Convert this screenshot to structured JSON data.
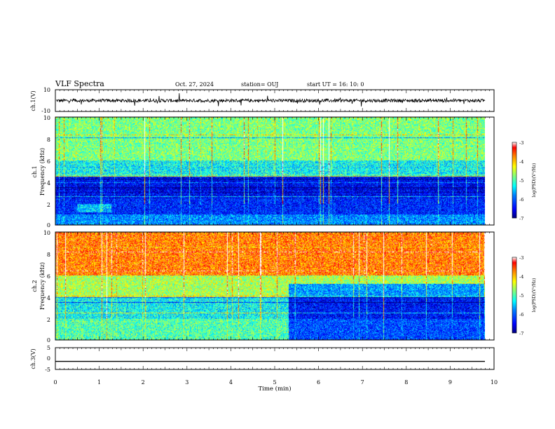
{
  "header": {
    "title": "VLF Spectra",
    "date": "Oct. 27, 2024",
    "station": "station= OUJ",
    "start": "start  UT =   16: 10: 0"
  },
  "colors": {
    "colormap": [
      "#00007f",
      "#0000ff",
      "#007fff",
      "#00ffff",
      "#7fff7f",
      "#ffff00",
      "#ff7f00",
      "#ff0000",
      "#ffffff"
    ]
  },
  "chart_data": [
    {
      "type": "line",
      "name": "ch1-waveform",
      "ylabel": "ch.1(V)",
      "ylim": [
        -10,
        10
      ],
      "yticks": [
        "10",
        "-10"
      ],
      "xlim": [
        0,
        10
      ],
      "baseline": 0,
      "noise_amplitude": 1.5
    },
    {
      "type": "heatmap",
      "name": "ch1-spectrogram",
      "ylabel": "ch.1\nFrequency  (kHz)",
      "ylim": [
        0,
        10
      ],
      "yticks": [
        "0",
        "2",
        "4",
        "6",
        "8",
        "10"
      ],
      "xlim": [
        0,
        9.8
      ],
      "colorbar": {
        "label": "log(PSD)(V²/Hz)",
        "range": [
          -7,
          -3
        ],
        "ticks": [
          "-3",
          "-4",
          "-5",
          "-6",
          "-7"
        ]
      },
      "bands_khz": [
        [
          0,
          1,
          -5.8
        ],
        [
          1,
          2.5,
          -6.3
        ],
        [
          2.5,
          4.5,
          -6.5
        ],
        [
          4.5,
          6,
          -5.3
        ],
        [
          6,
          10,
          -4.8
        ]
      ]
    },
    {
      "type": "heatmap",
      "name": "ch2-spectrogram",
      "ylabel": "ch.2\nFrequency  (kHz)",
      "ylim": [
        0,
        10
      ],
      "yticks": [
        "0",
        "2",
        "4",
        "6",
        "8",
        "10"
      ],
      "xlim": [
        0,
        9.8
      ],
      "colorbar": {
        "label": "log(PSD)(V²/Hz)",
        "range": [
          -7,
          -3
        ],
        "ticks": [
          "-3",
          "-4",
          "-5",
          "-6",
          "-7"
        ]
      },
      "bands_khz": [
        [
          0,
          2,
          -5.0
        ],
        [
          2,
          4,
          -5.3
        ],
        [
          4,
          6,
          -4.6
        ],
        [
          6,
          10,
          -3.7
        ]
      ],
      "change_minute": 5.3
    },
    {
      "type": "line",
      "name": "ch3-waveform",
      "ylabel": "ch.3(V)",
      "ylim": [
        -5,
        5
      ],
      "yticks": [
        "5",
        "0",
        "-5"
      ],
      "xlim": [
        0,
        10
      ],
      "baseline": -1.3
    }
  ],
  "xaxis": {
    "label": "Time  (min)",
    "ticks": [
      "0",
      "1",
      "2",
      "3",
      "4",
      "5",
      "6",
      "7",
      "8",
      "9",
      "10"
    ]
  }
}
